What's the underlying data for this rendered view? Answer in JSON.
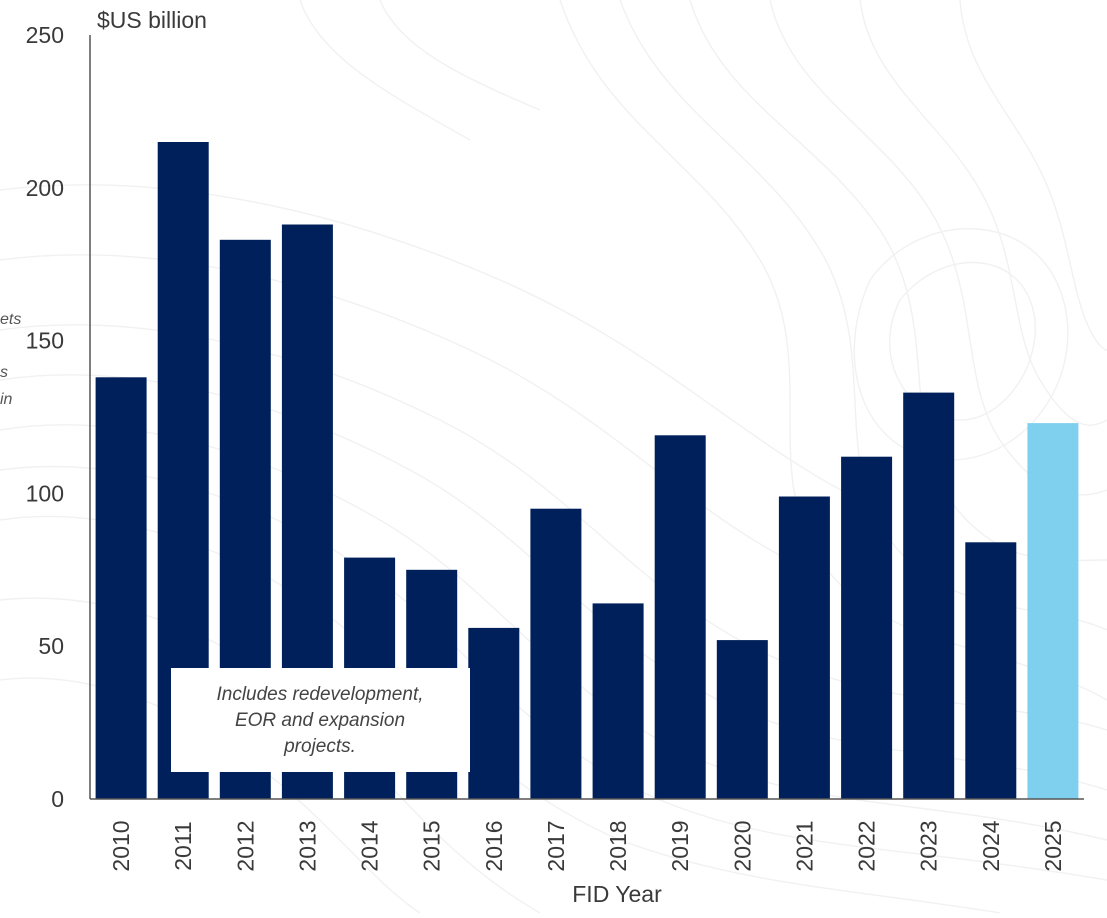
{
  "chart_data": {
    "type": "bar",
    "title": "",
    "y_unit_label": "$US billion",
    "xlabel": "FID Year",
    "ylabel": "",
    "ylim": [
      0,
      250
    ],
    "y_ticks": [
      0,
      50,
      100,
      150,
      200,
      250
    ],
    "grid": false,
    "categories": [
      "2010",
      "2011",
      "2012",
      "2013",
      "2014",
      "2015",
      "2016",
      "2017",
      "2018",
      "2019",
      "2020",
      "2021",
      "2022",
      "2023",
      "2024",
      "2025"
    ],
    "series": [
      {
        "values": [
          138,
          215,
          183,
          188,
          79,
          75,
          56,
          95,
          64,
          119,
          52,
          99,
          112,
          133,
          84,
          123
        ]
      }
    ],
    "colors": {
      "bar": "#00205b",
      "highlight_bar": "#7fd0ef",
      "highlight_category": "2025",
      "axis": "#555555"
    },
    "annotation": {
      "lines": [
        "Includes redevelopment,",
        "EOR  and expansion",
        "projects."
      ]
    },
    "clipped_side_text": [
      "ets",
      "s",
      "in"
    ]
  }
}
